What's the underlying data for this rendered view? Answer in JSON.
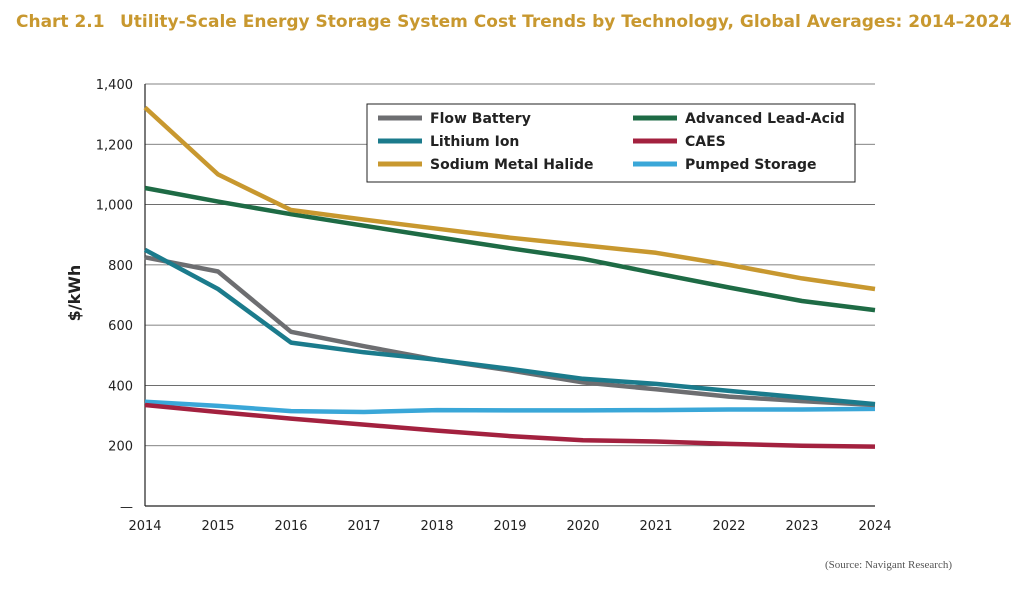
{
  "header": {
    "chart_number": "Chart 2.1",
    "title": "Utility-Scale Energy Storage System Cost Trends by Technology, Global Averages: 2014–2024"
  },
  "source": "(Source: Navigant Research)",
  "chart_data": {
    "type": "line",
    "title": "Utility-Scale Energy Storage System Cost Trends by Technology, Global Averages: 2014–2024",
    "xlabel": "",
    "ylabel": "$/kWh",
    "x": [
      2014,
      2015,
      2016,
      2017,
      2018,
      2019,
      2020,
      2021,
      2022,
      2023,
      2024
    ],
    "xtick_labels": [
      "2014",
      "2015",
      "2016",
      "2017",
      "2018",
      "2019",
      "2020",
      "2021",
      "2022",
      "2023",
      "2024"
    ],
    "ylim": [
      0,
      1400
    ],
    "yticks": [
      0,
      200,
      400,
      600,
      800,
      1000,
      1200,
      1400
    ],
    "ytick_labels": [
      "—",
      "200",
      "400",
      "600",
      "800",
      "1,000",
      "1,200",
      "1,400"
    ],
    "grid": "horizontal",
    "legend_position": "top-right",
    "series": [
      {
        "name": "Flow Battery",
        "color": "#6d6e71",
        "values": [
          825,
          778,
          578,
          530,
          485,
          450,
          410,
          387,
          363,
          348,
          335
        ]
      },
      {
        "name": "Lithium Ion",
        "color": "#1b7b8c",
        "values": [
          850,
          720,
          542,
          510,
          485,
          455,
          422,
          405,
          382,
          360,
          338
        ]
      },
      {
        "name": "Sodium Metal Halide",
        "color": "#c8982f",
        "values": [
          1322,
          1100,
          982,
          950,
          920,
          890,
          865,
          840,
          800,
          755,
          720
        ]
      },
      {
        "name": "Advanced Lead-Acid",
        "color": "#1e6b45",
        "values": [
          1055,
          1010,
          968,
          930,
          892,
          855,
          820,
          772,
          725,
          680,
          650
        ]
      },
      {
        "name": "CAES",
        "color": "#a3213f",
        "values": [
          335,
          312,
          290,
          270,
          250,
          232,
          218,
          214,
          206,
          200,
          197
        ]
      },
      {
        "name": "Pumped Storage",
        "color": "#3aa7d8",
        "values": [
          346,
          332,
          315,
          312,
          318,
          317,
          317,
          318,
          320,
          320,
          322
        ]
      }
    ]
  }
}
